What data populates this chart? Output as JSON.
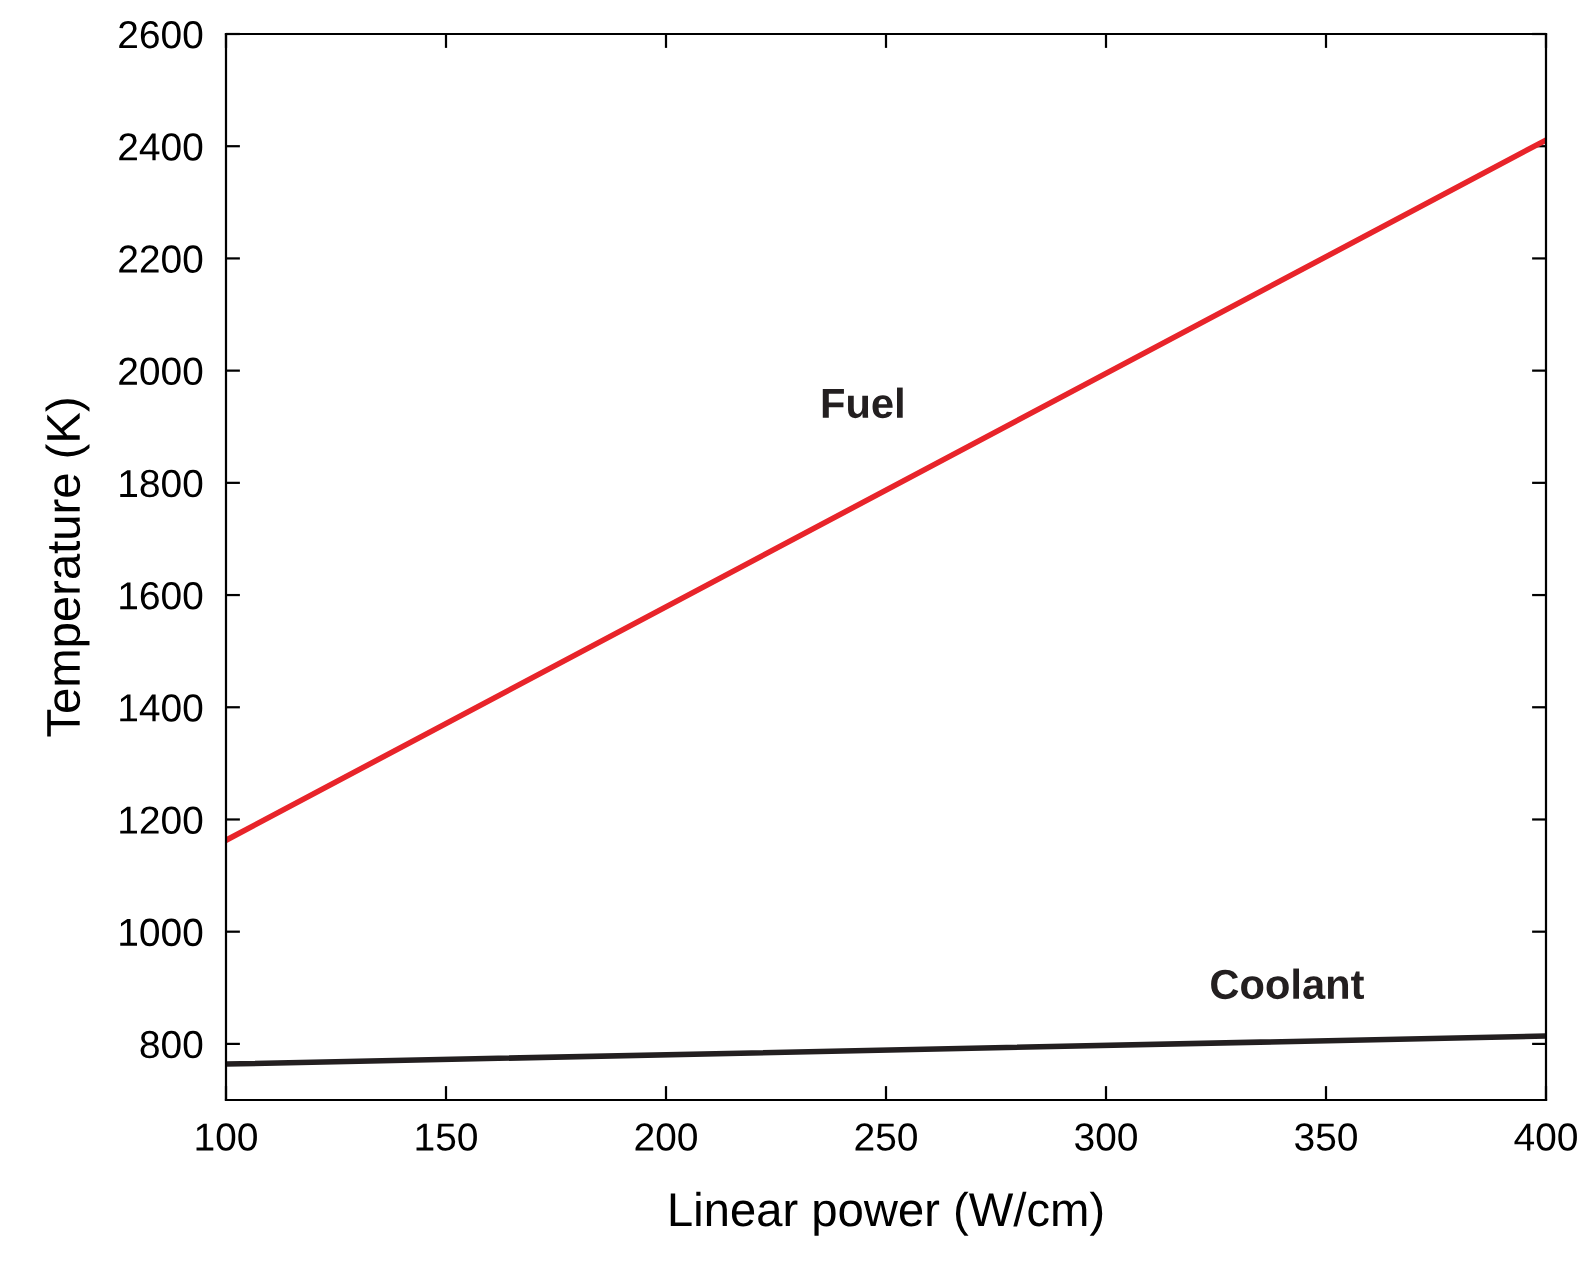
{
  "chart_data": {
    "type": "line",
    "xlabel": "Linear power (W/cm)",
    "ylabel": "Temperature (K)",
    "xlim": [
      100,
      400
    ],
    "xticks": [
      100,
      150,
      200,
      250,
      300,
      350,
      400
    ],
    "ylim": [
      700,
      2600
    ],
    "yticks": [
      800,
      1000,
      1200,
      1400,
      1600,
      1800,
      2000,
      2200,
      2400,
      2600
    ],
    "grid": false,
    "legend": false,
    "marker": "none",
    "line_style": "solid",
    "x": [
      100,
      400
    ],
    "series": [
      {
        "name": "Fuel",
        "color": "#e8242a",
        "values": [
          1163,
          2411
        ]
      },
      {
        "name": "Coolant",
        "color": "#231f20",
        "values": [
          764,
          814
        ]
      }
    ]
  }
}
